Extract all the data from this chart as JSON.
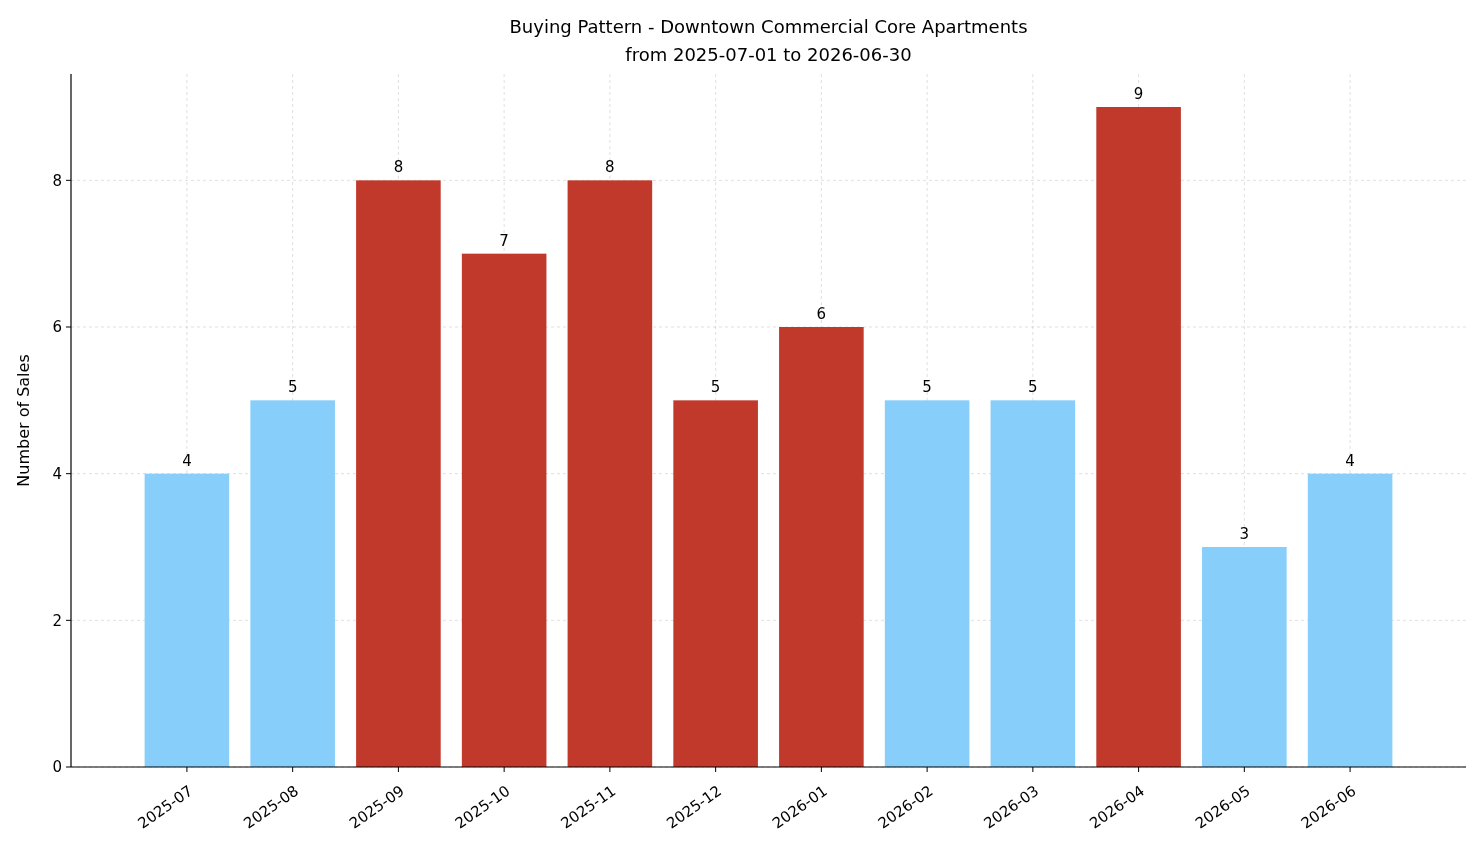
{
  "chart_data": {
    "type": "bar",
    "title": "Buying Pattern - Downtown Commercial Core Apartments",
    "subtitle": "from 2025-07-01 to 2026-06-30",
    "ylabel": "Number of Sales",
    "categories": [
      "2025-07",
      "2025-08",
      "2025-09",
      "2025-10",
      "2025-11",
      "2025-12",
      "2026-01",
      "2026-02",
      "2026-03",
      "2026-04",
      "2026-05",
      "2026-06"
    ],
    "values": [
      4,
      5,
      8,
      7,
      8,
      5,
      6,
      5,
      5,
      9,
      3,
      4
    ],
    "colors": [
      "#87cefa",
      "#87cefa",
      "#c0392b",
      "#c0392b",
      "#c0392b",
      "#c0392b",
      "#c0392b",
      "#87cefa",
      "#87cefa",
      "#c0392b",
      "#87cefa",
      "#87cefa"
    ],
    "ylim": [
      0,
      9.45
    ],
    "yticks": [
      0,
      2,
      4,
      6,
      8
    ],
    "grid": true,
    "data_labels": true
  }
}
